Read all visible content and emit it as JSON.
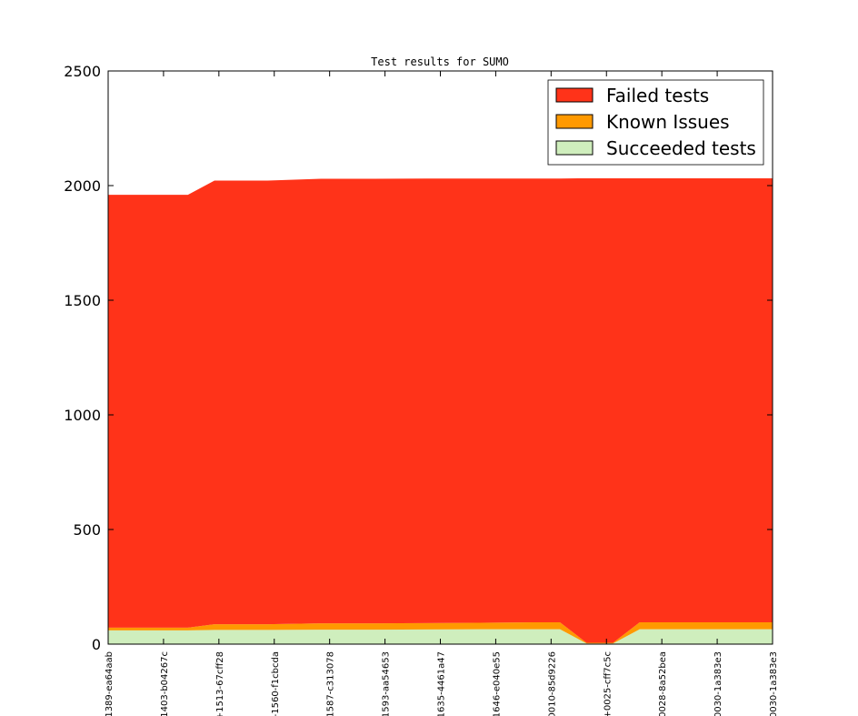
{
  "chart_data": {
    "type": "area",
    "title": "Test results for SUMO",
    "xlabel": "",
    "ylabel": "",
    "ylim": [
      0,
      2500
    ],
    "yticks": [
      0,
      500,
      1000,
      1500,
      2000,
      2500
    ],
    "grid": false,
    "stacked": true,
    "legend_position": "top-right",
    "categories": [
      "1389-ea64aab",
      "1403-b04267c",
      "+1513-67cff28",
      "-1560-f1cbcda",
      "1587-c313078",
      "1593-aa54653",
      "1635-4461a47",
      "1646-e040e55",
      "0010-85d9226",
      "+0025-cff7c5c",
      "0028-8a52bea",
      "0030-1a383e3",
      "0030-1a383e3"
    ],
    "x": [
      0,
      1,
      1.5,
      2,
      3,
      4,
      5,
      6,
      7,
      8,
      8.5,
      9,
      9.5,
      10,
      11,
      12,
      12.5
    ],
    "series": [
      {
        "name": "Succeeded tests",
        "color": "#cfeebd",
        "values": [
          60,
          60,
          60,
          62,
          62,
          63,
          63,
          64,
          65,
          65,
          65,
          3,
          3,
          65,
          65,
          65,
          65
        ]
      },
      {
        "name": "Known Issues",
        "color": "#ff9900",
        "values": [
          12,
          12,
          12,
          25,
          25,
          28,
          28,
          28,
          28,
          30,
          30,
          3,
          3,
          30,
          30,
          30,
          30
        ]
      },
      {
        "name": "Failed tests",
        "color": "#ff3319",
        "values": [
          1888,
          1888,
          1888,
          1935,
          1935,
          1939,
          1939,
          1939,
          1938,
          1936,
          1936,
          2026,
          2026,
          1937,
          1937,
          1937,
          1937
        ]
      }
    ]
  }
}
